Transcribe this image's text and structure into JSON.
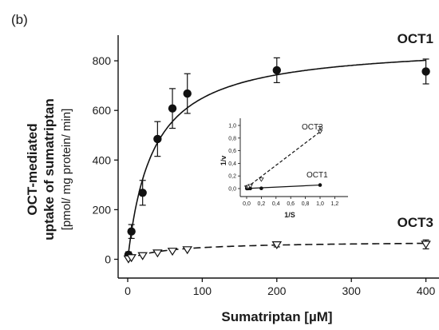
{
  "panel_label": "(b)",
  "chart_data": [
    {
      "type": "scatter",
      "xlabel": "Sumatriptan [µM]",
      "ylabel_bold": "OCT-mediated uptake of sumatriptan",
      "ylabel_line1": "OCT-mediated",
      "ylabel_line2": "uptake of sumatriptan",
      "ylabel_units": "[pmol/ mg protein/ min]",
      "xlim": [
        -10,
        410
      ],
      "ylim": [
        -60,
        880
      ],
      "xticks": [
        0,
        100,
        200,
        300,
        400
      ],
      "yticks": [
        0,
        200,
        400,
        600,
        800
      ],
      "series": [
        {
          "name": "OCT1",
          "marker": "filled-circle",
          "line": "solid",
          "x": [
            1,
            5,
            20,
            40,
            60,
            80,
            200,
            400
          ],
          "y": [
            18,
            112,
            268,
            485,
            608,
            668,
            762,
            757
          ],
          "err": [
            12,
            28,
            50,
            70,
            80,
            80,
            50,
            50
          ],
          "fit": {
            "vmax": 870,
            "km": 34
          }
        },
        {
          "name": "OCT3",
          "marker": "open-triangle-down",
          "line": "dashed",
          "x": [
            1,
            5,
            20,
            40,
            60,
            80,
            200,
            400
          ],
          "y": [
            1,
            6,
            14,
            25,
            32,
            38,
            58,
            60
          ],
          "err": [
            0,
            0,
            0,
            0,
            0,
            0,
            8,
            18
          ],
          "fit": {
            "vmax": 73,
            "km": 55
          }
        }
      ]
    },
    {
      "type": "line",
      "inset": true,
      "xlabel": "1/S",
      "ylabel": "1/v",
      "xlim": [
        -0.05,
        1.2
      ],
      "ylim": [
        -0.05,
        1.05
      ],
      "xticks": [
        "0,0",
        "0,2",
        "0,4",
        "0,6",
        "0,8",
        "1,0",
        "1,2"
      ],
      "xtick_values": [
        0,
        0.2,
        0.4,
        0.6,
        0.8,
        1.0,
        1.2
      ],
      "yticks": [
        "0,0",
        "0,2",
        "0,4",
        "0,6",
        "0,8",
        "1,0"
      ],
      "ytick_values": [
        0,
        0.2,
        0.4,
        0.6,
        0.8,
        1.0
      ],
      "series": [
        {
          "name": "OCT1",
          "marker": "filled-circle",
          "line": "solid",
          "x": [
            0.0025,
            0.0125,
            0.025,
            0.05,
            0.2,
            1.0
          ],
          "y": [
            0.0013,
            0.0015,
            0.0017,
            0.0022,
            0.0037,
            0.056
          ]
        },
        {
          "name": "OCT3",
          "marker": "open-triangle-down",
          "line": "dashed",
          "x": [
            0.0025,
            0.0125,
            0.025,
            0.05,
            0.2,
            1.0
          ],
          "y": [
            0.0165,
            0.0175,
            0.026,
            0.04,
            0.143,
            0.9
          ],
          "err_top": [
            0,
            0,
            0,
            0,
            0,
            0.08
          ]
        }
      ]
    }
  ]
}
